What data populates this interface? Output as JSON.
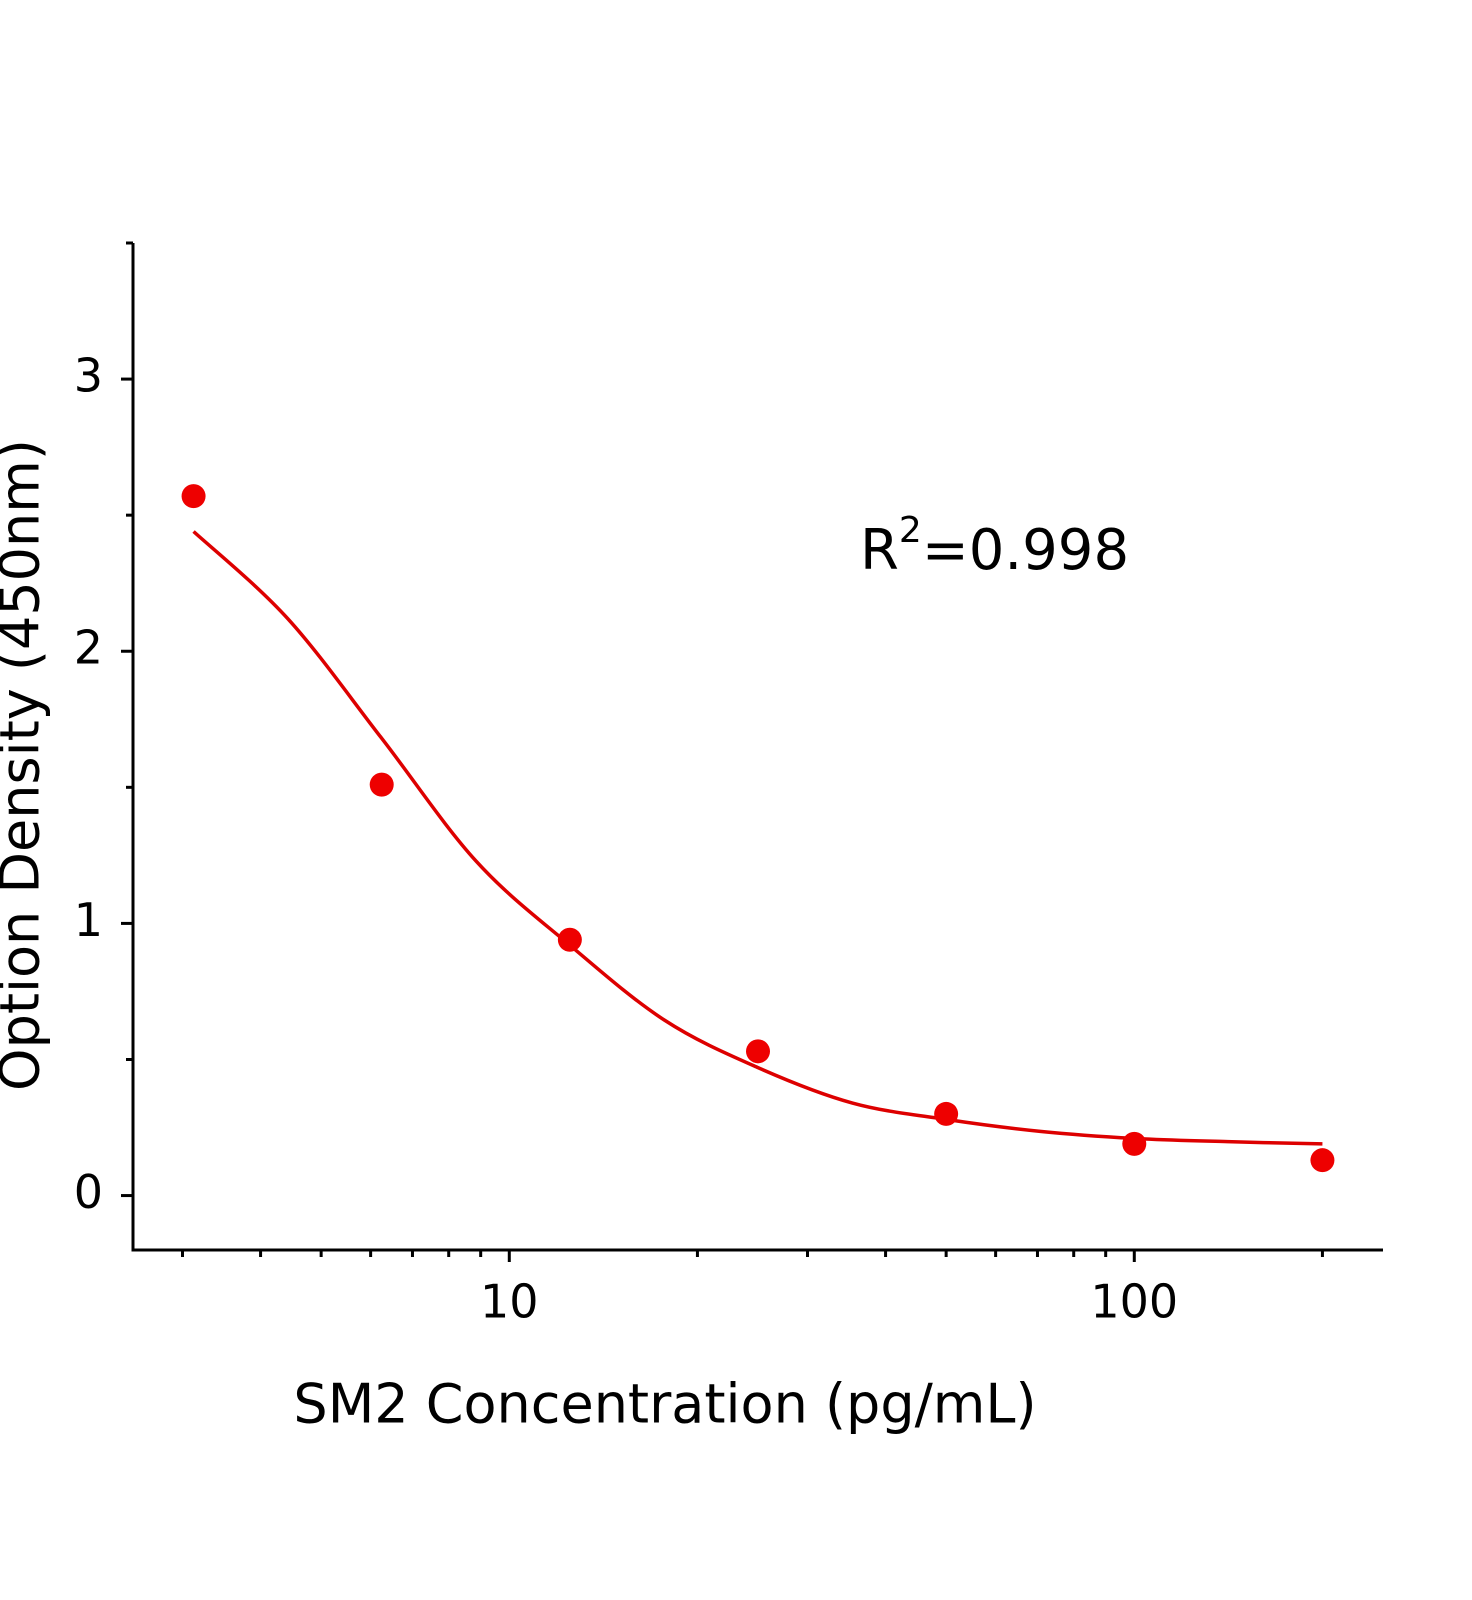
{
  "chart_data": {
    "type": "scatter",
    "x_label": "SM2 Concentration (pg/mL)",
    "y_label": "Option Density (450nm)",
    "annotation": {
      "base": "R",
      "sup": "2",
      "rest": "=0.998"
    },
    "x_log": true,
    "xlim": [
      2.5,
      250
    ],
    "ylim": [
      -0.2,
      3.5
    ],
    "xticks": [
      10,
      100
    ],
    "yticks": [
      0,
      1,
      2,
      3
    ],
    "x_minor_ticks": [
      3,
      4,
      5,
      6,
      7,
      8,
      9,
      20,
      30,
      40,
      50,
      60,
      70,
      80,
      90,
      200
    ],
    "y_minor_ticks": [
      0.5,
      1.5,
      2.5,
      3.5
    ],
    "series": [
      {
        "color": "#ee0000",
        "x": [
          3.125,
          6.25,
          12.5,
          25,
          50,
          100,
          200
        ],
        "values": [
          2.57,
          1.51,
          0.94,
          0.53,
          0.3,
          0.19,
          0.13
        ]
      }
    ],
    "fit": {
      "color": "#dd0000",
      "x": [
        3.125,
        4.42,
        6.25,
        8.84,
        12.5,
        17.7,
        25,
        35.4,
        50,
        70.7,
        100,
        141,
        200
      ],
      "values": [
        2.44,
        2.12,
        1.68,
        1.23,
        0.92,
        0.645,
        0.47,
        0.34,
        0.28,
        0.236,
        0.21,
        0.198,
        0.19
      ]
    }
  }
}
